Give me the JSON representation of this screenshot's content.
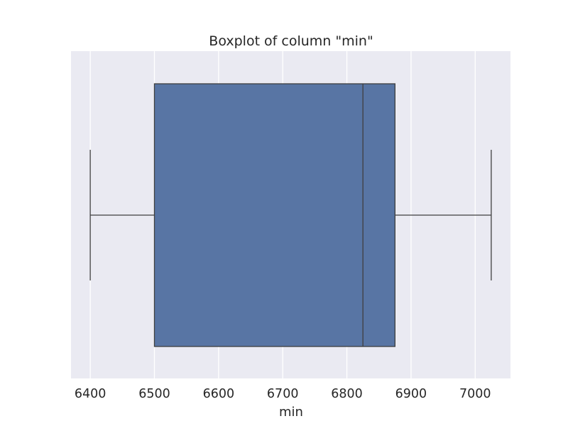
{
  "chart_data": {
    "type": "boxplot",
    "title": "Boxplot of column \"min\"",
    "xlabel": "min",
    "ylabel": "",
    "orientation": "horizontal",
    "xlim": [
      6370,
      7055
    ],
    "xticks": [
      6400,
      6500,
      6600,
      6700,
      6800,
      6900,
      7000
    ],
    "grid": true,
    "box": {
      "whisker_low": 6400,
      "q1": 6500,
      "median": 6825,
      "q3": 6875,
      "whisker_high": 7025
    },
    "colors": {
      "box_fill": "#5875a4",
      "line": "#3f3f3f",
      "plot_background": "#eaeaf2",
      "grid": "#ffffff",
      "text": "#262626"
    }
  }
}
